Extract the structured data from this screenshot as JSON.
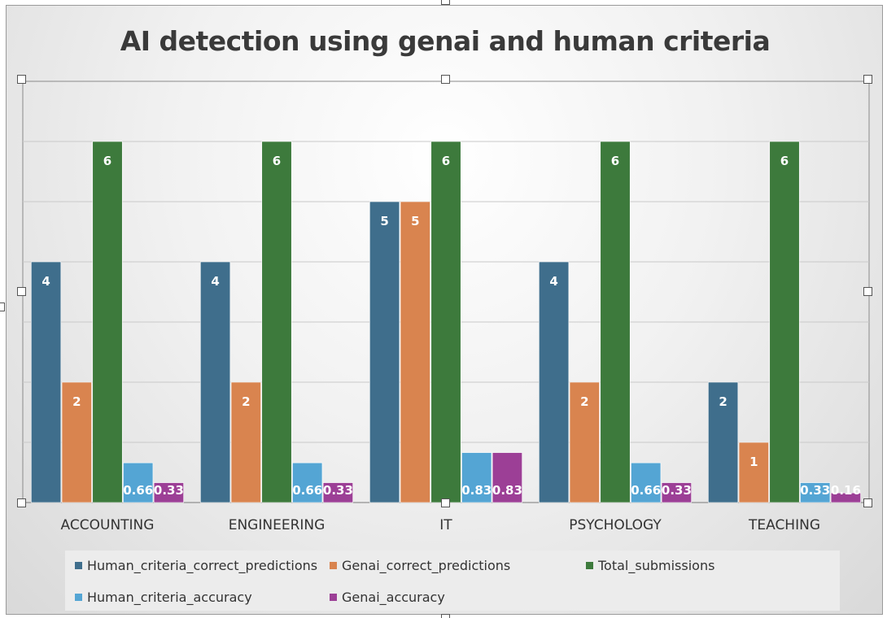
{
  "chart_data": {
    "type": "bar",
    "title": "AI detection using genai and human criteria",
    "categories": [
      "ACCOUNTING",
      "ENGINEERING",
      "IT",
      "PSYCHOLOGY",
      "TEACHING"
    ],
    "series": [
      {
        "name": "Human_criteria_correct_predictions",
        "color": "#3f6e8c",
        "values": [
          4,
          4,
          5,
          4,
          2
        ],
        "labels": [
          "4",
          "4",
          "5",
          "4",
          "2"
        ]
      },
      {
        "name": "Genai_correct_predictions",
        "color": "#d9844f",
        "values": [
          2,
          2,
          5,
          2,
          1
        ],
        "labels": [
          "2",
          "2",
          "5",
          "2",
          "1"
        ]
      },
      {
        "name": "Total_submissions",
        "color": "#3d7a3c",
        "values": [
          6,
          6,
          6,
          6,
          6
        ],
        "labels": [
          "6",
          "6",
          "6",
          "6",
          "6"
        ]
      },
      {
        "name": "Human_criteria_accuracy",
        "color": "#54a5d4",
        "values": [
          0.66,
          0.66,
          0.83,
          0.66,
          0.33
        ],
        "labels": [
          "0.66",
          "0.66",
          "0.83",
          "0.66",
          "0.33"
        ]
      },
      {
        "name": "Genai_accuracy",
        "color": "#9c3f96",
        "values": [
          0.33,
          0.33,
          0.83,
          0.33,
          0.16
        ],
        "labels": [
          "0.33",
          "0.33",
          "0.83",
          "0.33",
          "0.16"
        ]
      }
    ],
    "ylim": [
      0,
      7
    ],
    "grid": true,
    "legend_position": "bottom"
  }
}
